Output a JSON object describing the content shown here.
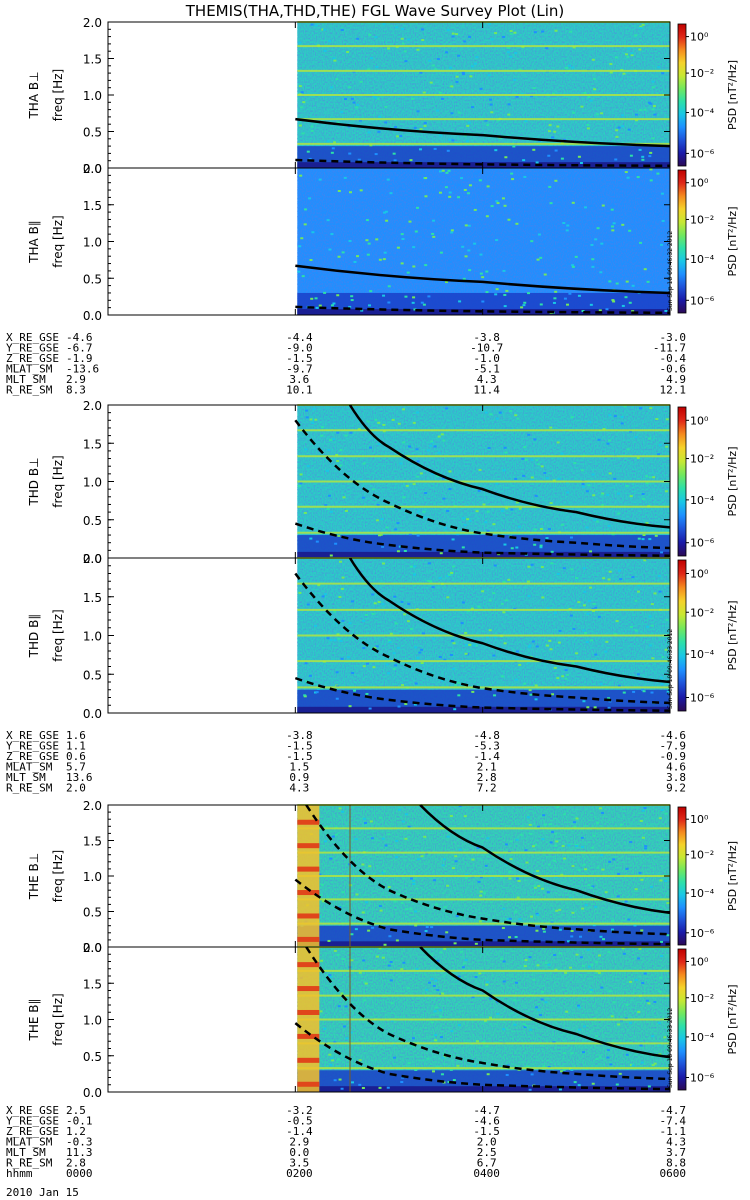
{
  "title": "THEMIS(THA,THD,THE) FGL Wave Survey Plot (Lin)",
  "colors": {
    "cmap": [
      "#2b0a55",
      "#1a1aa8",
      "#1f52d8",
      "#1e90ff",
      "#19c7e6",
      "#2de0a8",
      "#72e85e",
      "#c8e832",
      "#f5d22a",
      "#f58a1e",
      "#e02818",
      "#c00000"
    ],
    "frame": "#000000"
  },
  "freq_axis": {
    "label": "freq [Hz]",
    "ticks": [
      "0.0",
      "0.5",
      "1.0",
      "1.5",
      "2.0"
    ],
    "ylim": [
      0.0,
      2.0
    ]
  },
  "colorbar": {
    "label": "PSD [nT²/Hz]",
    "ticks": [
      "10⁰",
      "10⁻²",
      "10⁻⁴",
      "10⁻⁶"
    ]
  },
  "sidestamps": [
    "Sun Sep 18 09:46:32 2012",
    "Sun Sep 18 09:46:33 2012",
    "Sun Sep 18 09:46:33 2012"
  ],
  "chart_data": [
    {
      "type": "heatmap",
      "probe": "THA",
      "panels": [
        "THA B⊥",
        "THA B∥"
      ],
      "xlabel_unit": "freq [Hz]",
      "ylim": [
        0.0,
        2.0
      ],
      "data_start_hhmm": "0200",
      "series": [
        {
          "name": "fce-like solid",
          "x": [
            "0200",
            "0400",
            "0600"
          ],
          "values": [
            0.67,
            0.45,
            0.3
          ]
        },
        {
          "name": "dashed",
          "x": [
            "0200",
            "0400",
            "0600"
          ],
          "values": [
            0.11,
            0.05,
            0.03
          ]
        }
      ]
    },
    {
      "type": "heatmap",
      "probe": "THD",
      "panels": [
        "THD B⊥",
        "THD B∥"
      ],
      "xlabel_unit": "freq [Hz]",
      "ylim": [
        0.0,
        2.0
      ],
      "data_start_hhmm": "0200",
      "series": [
        {
          "name": "solid",
          "x": [
            "0235",
            "0300",
            "0400",
            "0500",
            "0600"
          ],
          "values": [
            2.0,
            1.45,
            0.9,
            0.6,
            0.4
          ]
        },
        {
          "name": "dashed upper",
          "x": [
            "0200",
            "0300",
            "0400",
            "0500",
            "0600"
          ],
          "values": [
            1.8,
            0.72,
            0.32,
            0.2,
            0.13
          ]
        },
        {
          "name": "dashed lower",
          "x": [
            "0200",
            "0300",
            "0400",
            "0600"
          ],
          "values": [
            0.45,
            0.17,
            0.07,
            0.03
          ]
        }
      ]
    },
    {
      "type": "heatmap",
      "probe": "THE",
      "panels": [
        "THE B⊥",
        "THE B∥"
      ],
      "xlabel_unit": "freq [Hz]",
      "ylim": [
        0.0,
        2.0
      ],
      "data_start_hhmm": "0200",
      "series": [
        {
          "name": "solid",
          "x": [
            "0320",
            "0400",
            "0500",
            "0600"
          ],
          "values": [
            2.0,
            1.4,
            0.8,
            0.48
          ]
        },
        {
          "name": "dashed upper",
          "x": [
            "0207",
            "0300",
            "0400",
            "0500",
            "0600"
          ],
          "values": [
            2.0,
            0.8,
            0.4,
            0.25,
            0.18
          ]
        },
        {
          "name": "dashed lower",
          "x": [
            "0200",
            "0300",
            "0400",
            "0600"
          ],
          "values": [
            0.95,
            0.25,
            0.1,
            0.04
          ]
        }
      ]
    }
  ],
  "ephem": [
    {
      "rows": [
        {
          "label": "X_RE_GSE",
          "vals": [
            "-4.6",
            "-4.4",
            "-3.8",
            "-3.0"
          ]
        },
        {
          "label": "Y_RE_GSE",
          "vals": [
            "-6.7",
            "-9.0",
            "-10.7",
            "-11.7"
          ]
        },
        {
          "label": "Z_RE_GSE",
          "vals": [
            "-1.9",
            "-1.5",
            "-1.0",
            "-0.4"
          ]
        },
        {
          "label": "MLAT_SM",
          "vals": [
            "-13.6",
            "-9.7",
            "-5.1",
            "-0.6"
          ]
        },
        {
          "label": "MLT_SM",
          "vals": [
            "2.9",
            "3.6",
            "4.3",
            "4.9"
          ]
        },
        {
          "label": "R_RE_SM",
          "vals": [
            "8.3",
            "10.1",
            "11.4",
            "12.1"
          ]
        }
      ]
    },
    {
      "rows": [
        {
          "label": "X_RE_GSE",
          "vals": [
            "1.6",
            "-3.8",
            "-4.8",
            "-4.6"
          ]
        },
        {
          "label": "Y_RE_GSE",
          "vals": [
            "1.1",
            "-1.5",
            "-5.3",
            "-7.9"
          ]
        },
        {
          "label": "Z_RE_GSE",
          "vals": [
            "0.6",
            "-1.5",
            "-1.4",
            "-0.9"
          ]
        },
        {
          "label": "MLAT_SM",
          "vals": [
            "5.7",
            "1.5",
            "2.1",
            "4.6"
          ]
        },
        {
          "label": "MLT_SM",
          "vals": [
            "13.6",
            "0.9",
            "2.8",
            "3.8"
          ]
        },
        {
          "label": "R_RE_SM",
          "vals": [
            "2.0",
            "4.3",
            "7.2",
            "9.2"
          ]
        }
      ]
    },
    {
      "rows": [
        {
          "label": "X_RE_GSE",
          "vals": [
            "2.5",
            "-3.2",
            "-4.7",
            "-4.7"
          ]
        },
        {
          "label": "Y_RE_GSE",
          "vals": [
            "-0.1",
            "-0.5",
            "-4.6",
            "-7.4"
          ]
        },
        {
          "label": "Z_RE_GSE",
          "vals": [
            "1.2",
            "-1.4",
            "-1.5",
            "-1.1"
          ]
        },
        {
          "label": "MLAT_SM",
          "vals": [
            "-0.3",
            "2.9",
            "2.0",
            "4.3"
          ]
        },
        {
          "label": "MLT_SM",
          "vals": [
            "11.3",
            "0.0",
            "2.5",
            "3.7"
          ]
        },
        {
          "label": "R_RE_SM",
          "vals": [
            "2.8",
            "3.5",
            "6.7",
            "8.8"
          ]
        },
        {
          "label": "hhmm",
          "vals": [
            "0000",
            "0200",
            "0400",
            "0600"
          ]
        }
      ]
    }
  ],
  "date_label": "2010 Jan 15"
}
